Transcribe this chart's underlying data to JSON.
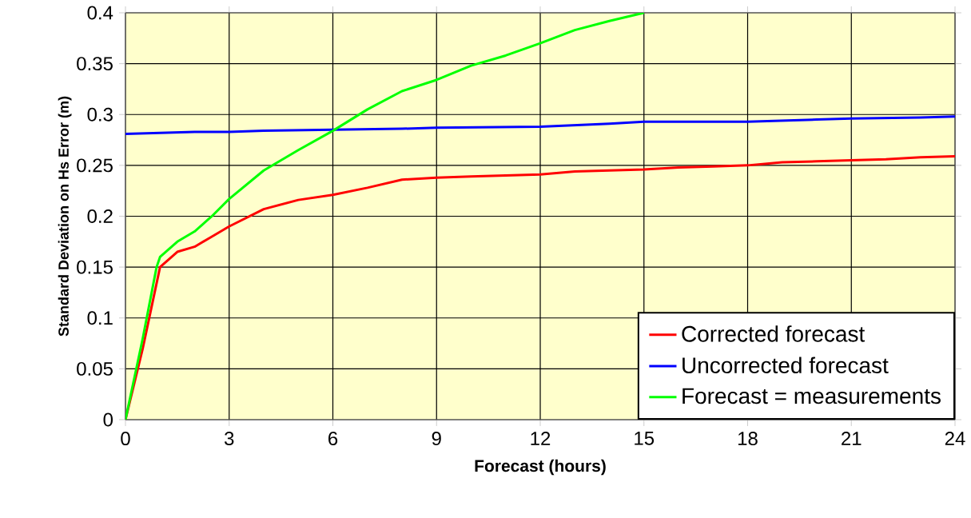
{
  "chart_data": {
    "type": "line",
    "xlabel": "Forecast (hours)",
    "ylabel": "Standard Deviation on Hs Error (m)",
    "xlim": [
      0,
      24
    ],
    "xticks": [
      0,
      3,
      6,
      9,
      12,
      15,
      18,
      21,
      24
    ],
    "ylim": [
      0,
      0.4
    ],
    "yticks": [
      0,
      0.05,
      0.1,
      0.15,
      0.2,
      0.25,
      0.3,
      0.35,
      0.4
    ],
    "grid": true,
    "legend": "bottom right",
    "marker": "none",
    "line_style": "solid",
    "series": [
      {
        "name": "Corrected forecast",
        "color": "#ff0000",
        "x": [
          0,
          0.5,
          1,
          1.5,
          2,
          2.5,
          3,
          4,
          5,
          6,
          7,
          8,
          9,
          10,
          11,
          12,
          13,
          14,
          15,
          16,
          17,
          18,
          19,
          20,
          21,
          22,
          23,
          24
        ],
        "values": [
          0,
          0.07,
          0.15,
          0.165,
          0.17,
          0.18,
          0.19,
          0.207,
          0.216,
          0.221,
          0.228,
          0.236,
          0.238,
          0.239,
          0.24,
          0.241,
          0.244,
          0.245,
          0.246,
          0.248,
          0.249,
          0.25,
          0.253,
          0.254,
          0.255,
          0.256,
          0.258,
          0.259
        ]
      },
      {
        "name": "Uncorrected forecast",
        "color": "#0000ff",
        "x": [
          0,
          1,
          2,
          3,
          4,
          6,
          8,
          9,
          12,
          14,
          15,
          18,
          20,
          21,
          23,
          24
        ],
        "values": [
          0.281,
          0.282,
          0.283,
          0.283,
          0.284,
          0.285,
          0.286,
          0.287,
          0.288,
          0.291,
          0.293,
          0.293,
          0.295,
          0.296,
          0.297,
          0.298
        ]
      },
      {
        "name": "Forecast = measurements",
        "color": "#00ff00",
        "x": [
          0,
          0.5,
          0.9,
          1,
          1.5,
          2,
          2.5,
          3,
          4,
          5,
          6,
          7,
          8,
          9,
          10,
          11,
          12,
          13,
          14,
          15
        ],
        "values": [
          0,
          0.08,
          0.15,
          0.16,
          0.175,
          0.185,
          0.2,
          0.217,
          0.245,
          0.265,
          0.284,
          0.305,
          0.323,
          0.334,
          0.348,
          0.358,
          0.37,
          0.383,
          0.392,
          0.4
        ]
      }
    ]
  }
}
